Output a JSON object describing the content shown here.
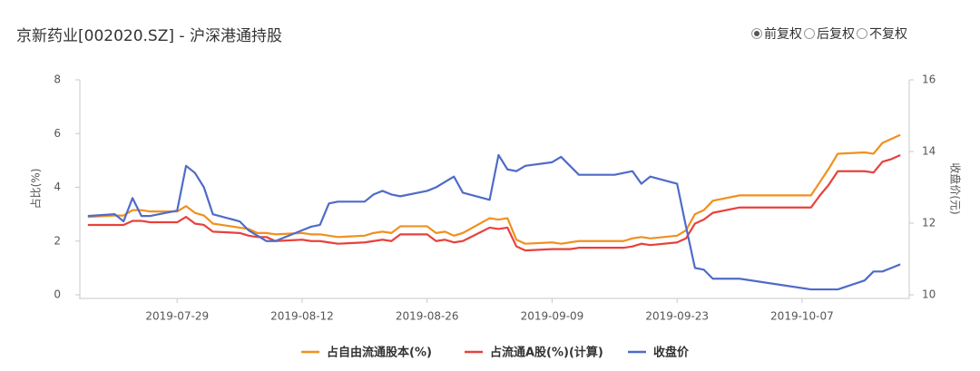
{
  "chart_data": {
    "type": "line",
    "title": "京新药业[002020.SZ] - 沪深港通持股",
    "adjust_options": [
      "前复权",
      "后复权",
      "不复权"
    ],
    "adjust_selected": 0,
    "y_label": "占比(%)",
    "y2_label": "收盘价(元)",
    "xlim": [
      "2019-07-18",
      "2019-10-19"
    ],
    "xticks": [
      "2019-07-29",
      "2019-08-12",
      "2019-08-26",
      "2019-09-09",
      "2019-09-23",
      "2019-10-07"
    ],
    "ylim": [
      0,
      8
    ],
    "yticks": [
      0,
      2,
      4,
      6,
      8
    ],
    "y2lim": [
      10,
      16
    ],
    "y2ticks": [
      10,
      12,
      14,
      16
    ],
    "grid": false,
    "legend": "bottom",
    "x": [
      "2019-07-19",
      "2019-07-22",
      "2019-07-23",
      "2019-07-24",
      "2019-07-25",
      "2019-07-26",
      "2019-07-29",
      "2019-07-30",
      "2019-07-31",
      "2019-08-01",
      "2019-08-02",
      "2019-08-05",
      "2019-08-06",
      "2019-08-07",
      "2019-08-08",
      "2019-08-09",
      "2019-08-12",
      "2019-08-13",
      "2019-08-14",
      "2019-08-15",
      "2019-08-16",
      "2019-08-19",
      "2019-08-20",
      "2019-08-21",
      "2019-08-22",
      "2019-08-23",
      "2019-08-26",
      "2019-08-27",
      "2019-08-28",
      "2019-08-29",
      "2019-08-30",
      "2019-09-02",
      "2019-09-03",
      "2019-09-04",
      "2019-09-05",
      "2019-09-06",
      "2019-09-09",
      "2019-09-10",
      "2019-09-11",
      "2019-09-12",
      "2019-09-16",
      "2019-09-17",
      "2019-09-18",
      "2019-09-19",
      "2019-09-20",
      "2019-09-23",
      "2019-09-24",
      "2019-09-25",
      "2019-09-26",
      "2019-09-27",
      "2019-09-30",
      "2019-10-08",
      "2019-10-09",
      "2019-10-10",
      "2019-10-11",
      "2019-10-14",
      "2019-10-15",
      "2019-10-16",
      "2019-10-17",
      "2019-10-18"
    ],
    "series": [
      {
        "name": "占自由流通股本(%)",
        "color": "#f0901e",
        "values": [
          2.9,
          2.95,
          2.95,
          3.15,
          3.15,
          3.1,
          3.1,
          3.3,
          3.05,
          2.95,
          2.65,
          2.5,
          2.45,
          2.3,
          2.3,
          2.25,
          2.3,
          2.25,
          2.25,
          2.2,
          2.15,
          2.2,
          2.3,
          2.35,
          2.3,
          2.55,
          2.55,
          2.3,
          2.35,
          2.2,
          2.3,
          2.85,
          2.8,
          2.85,
          2.05,
          1.9,
          1.95,
          1.9,
          1.95,
          2.0,
          2.0,
          2.0,
          2.1,
          2.15,
          2.1,
          2.2,
          2.4,
          3.0,
          3.15,
          3.5,
          3.7,
          3.7,
          4.2,
          4.7,
          5.25,
          5.3,
          5.25,
          5.65,
          5.8,
          5.95
        ]
      },
      {
        "name": "占流通A股(%)(计算)",
        "color": "#e8413c",
        "values": [
          2.6,
          2.6,
          2.6,
          2.75,
          2.75,
          2.7,
          2.7,
          2.9,
          2.65,
          2.6,
          2.35,
          2.3,
          2.2,
          2.15,
          2.15,
          2.0,
          2.05,
          2.0,
          2.0,
          1.95,
          1.9,
          1.95,
          2.0,
          2.05,
          2.0,
          2.25,
          2.25,
          2.0,
          2.05,
          1.95,
          2.0,
          2.5,
          2.45,
          2.5,
          1.8,
          1.65,
          1.7,
          1.7,
          1.7,
          1.75,
          1.75,
          1.75,
          1.8,
          1.9,
          1.85,
          1.95,
          2.1,
          2.65,
          2.8,
          3.05,
          3.25,
          3.25,
          3.7,
          4.1,
          4.6,
          4.6,
          4.55,
          4.95,
          5.05,
          5.2
        ]
      },
      {
        "name": "收盘价",
        "color": "#4f6bc8",
        "axis": "y2",
        "values": [
          12.2,
          12.25,
          12.05,
          12.7,
          12.2,
          12.2,
          12.35,
          13.6,
          13.4,
          13.0,
          12.25,
          12.05,
          11.8,
          11.65,
          11.5,
          11.5,
          11.8,
          11.9,
          11.95,
          12.55,
          12.6,
          12.6,
          12.8,
          12.9,
          12.8,
          12.75,
          12.9,
          13.0,
          13.15,
          13.3,
          12.85,
          12.65,
          13.9,
          13.5,
          13.45,
          13.6,
          13.7,
          13.85,
          13.6,
          13.35,
          13.35,
          13.4,
          13.45,
          13.1,
          13.3,
          13.1,
          11.9,
          10.75,
          10.7,
          10.45,
          10.45,
          10.15,
          10.15,
          10.15,
          10.15,
          10.4,
          10.65,
          10.65,
          10.75,
          10.85
        ]
      }
    ]
  }
}
